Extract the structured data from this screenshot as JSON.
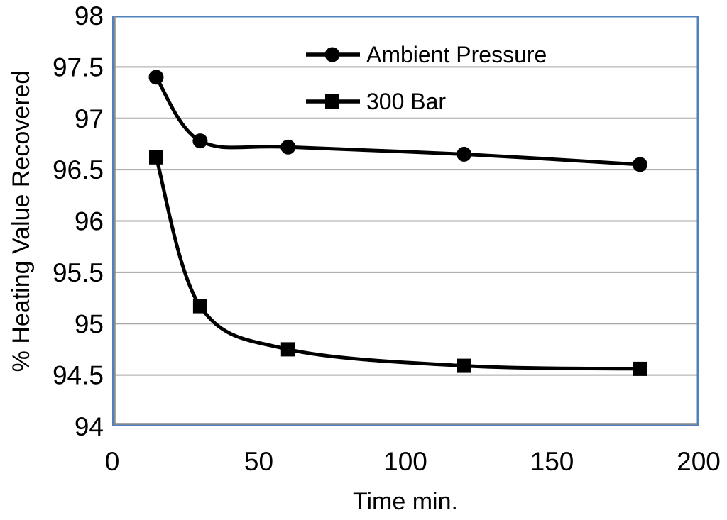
{
  "chart_data": {
    "type": "line",
    "title": "",
    "xlabel": "Time min.",
    "ylabel": "% Heating Value Recovered",
    "xlim": [
      0,
      200
    ],
    "ylim": [
      94,
      98
    ],
    "x_ticks": [
      0,
      50,
      100,
      150,
      200
    ],
    "y_ticks": [
      94,
      94.5,
      95,
      95.5,
      96,
      96.5,
      97,
      97.5,
      98
    ],
    "grid": "horizontal-only",
    "legend_position": "inside-top-center",
    "x": [
      15,
      30,
      60,
      120,
      180
    ],
    "series": [
      {
        "name": "Ambient Pressure",
        "marker": "circle",
        "color": "#000000",
        "smooth": true,
        "values": [
          97.4,
          96.78,
          96.72,
          96.65,
          96.55
        ]
      },
      {
        "name": "300 Bar",
        "marker": "square",
        "color": "#000000",
        "smooth": true,
        "values": [
          96.62,
          95.17,
          94.75,
          94.59,
          94.56
        ]
      }
    ],
    "colors": {
      "plot_border": "#4F81BD",
      "gridline": "#A6A6A6",
      "axis_line": "#8C8C8C",
      "text": "#000000",
      "background": "#FFFFFF"
    }
  }
}
